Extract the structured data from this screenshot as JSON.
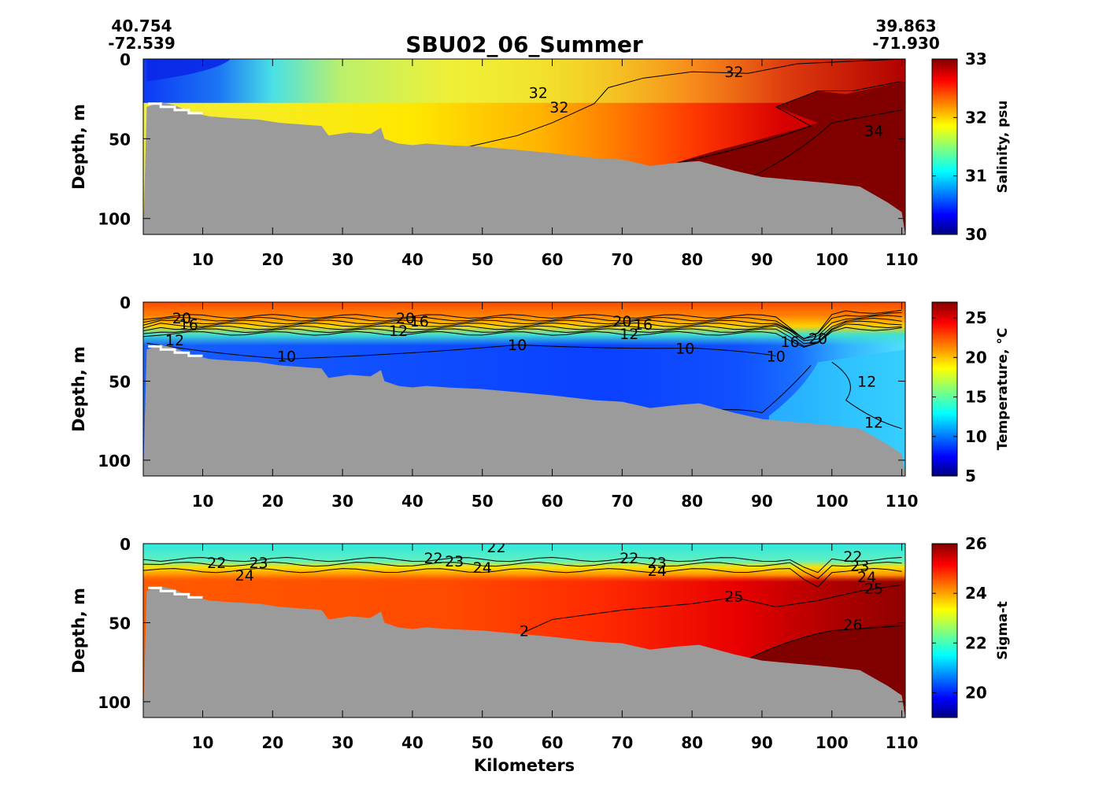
{
  "title": "SBU02_06_Summer",
  "start_coord": {
    "lat": "40.754",
    "lon": "-72.539"
  },
  "end_coord": {
    "lat": "39.863",
    "lon": "-71.930"
  },
  "xlabel": "Kilometers",
  "colors": {
    "bathymetry": "#9b9b9b"
  },
  "chart_data": [
    {
      "type": "heatmap",
      "name": "salinity",
      "ylabel": "Depth, m",
      "colorbar_label": "Salinity, psu",
      "xlim": [
        1.5,
        110.5
      ],
      "ylim": [
        110,
        0
      ],
      "xticks": [
        10,
        20,
        30,
        40,
        50,
        60,
        70,
        80,
        90,
        100,
        110
      ],
      "yticks": [
        0,
        50,
        100
      ],
      "clim": [
        30,
        33
      ],
      "cticks": [
        30,
        31,
        32,
        33
      ],
      "contour_labels": [
        {
          "text": "32",
          "x": 86,
          "y": 8
        },
        {
          "text": "32",
          "x": 58,
          "y": 21
        },
        {
          "text": "32",
          "x": 61,
          "y": 30
        },
        {
          "text": "34",
          "x": 106,
          "y": 45
        }
      ]
    },
    {
      "type": "heatmap",
      "name": "temperature",
      "ylabel": "Depth, m",
      "colorbar_label": "Temperature, °C",
      "xlim": [
        1.5,
        110.5
      ],
      "ylim": [
        110,
        0
      ],
      "xticks": [
        10,
        20,
        30,
        40,
        50,
        60,
        70,
        80,
        90,
        100,
        110
      ],
      "yticks": [
        0,
        50,
        100
      ],
      "clim": [
        5,
        27
      ],
      "cticks": [
        5,
        10,
        15,
        20,
        25
      ],
      "contour_labels": [
        {
          "text": "20",
          "x": 7,
          "y": 10
        },
        {
          "text": "16",
          "x": 8,
          "y": 14
        },
        {
          "text": "12",
          "x": 6,
          "y": 24
        },
        {
          "text": "10",
          "x": 22,
          "y": 34
        },
        {
          "text": "20",
          "x": 39,
          "y": 10
        },
        {
          "text": "16",
          "x": 41,
          "y": 12
        },
        {
          "text": "12",
          "x": 38,
          "y": 18
        },
        {
          "text": "10",
          "x": 55,
          "y": 27
        },
        {
          "text": "20",
          "x": 70,
          "y": 12
        },
        {
          "text": "16",
          "x": 73,
          "y": 14
        },
        {
          "text": "12",
          "x": 71,
          "y": 20
        },
        {
          "text": "10",
          "x": 79,
          "y": 29
        },
        {
          "text": "16",
          "x": 94,
          "y": 25
        },
        {
          "text": "20",
          "x": 98,
          "y": 23
        },
        {
          "text": "10",
          "x": 92,
          "y": 34
        },
        {
          "text": "12",
          "x": 105,
          "y": 50
        },
        {
          "text": "12",
          "x": 106,
          "y": 76
        }
      ]
    },
    {
      "type": "heatmap",
      "name": "sigma-t",
      "ylabel": "Depth, m",
      "colorbar_label": "Sigma-t",
      "xlim": [
        1.5,
        110.5
      ],
      "ylim": [
        110,
        0
      ],
      "xticks": [
        10,
        20,
        30,
        40,
        50,
        60,
        70,
        80,
        90,
        100,
        110
      ],
      "yticks": [
        0,
        50,
        100
      ],
      "clim": [
        19,
        26
      ],
      "cticks": [
        20,
        22,
        24,
        26
      ],
      "contour_labels": [
        {
          "text": "22",
          "x": 52,
          "y": 2
        },
        {
          "text": "22",
          "x": 12,
          "y": 12
        },
        {
          "text": "23",
          "x": 18,
          "y": 12
        },
        {
          "text": "24",
          "x": 16,
          "y": 20
        },
        {
          "text": "22",
          "x": 43,
          "y": 9
        },
        {
          "text": "23",
          "x": 46,
          "y": 11
        },
        {
          "text": "24",
          "x": 50,
          "y": 15
        },
        {
          "text": "22",
          "x": 71,
          "y": 9
        },
        {
          "text": "23",
          "x": 75,
          "y": 12
        },
        {
          "text": "24",
          "x": 75,
          "y": 17
        },
        {
          "text": "25",
          "x": 86,
          "y": 33
        },
        {
          "text": "22",
          "x": 103,
          "y": 8
        },
        {
          "text": "23",
          "x": 104,
          "y": 14
        },
        {
          "text": "24",
          "x": 105,
          "y": 21
        },
        {
          "text": "25",
          "x": 106,
          "y": 28
        },
        {
          "text": "26",
          "x": 103,
          "y": 51
        },
        {
          "text": "2",
          "x": 56,
          "y": 55
        }
      ]
    }
  ],
  "bathymetry": {
    "x": [
      1.5,
      2,
      4,
      6,
      8,
      10,
      11,
      14,
      18,
      21,
      24,
      27,
      28,
      31,
      34,
      35.5,
      36,
      38,
      40,
      42,
      45,
      50,
      55,
      60,
      66,
      70,
      74,
      78,
      81,
      86,
      90,
      95,
      100,
      104,
      108,
      110,
      110.5
    ],
    "y": [
      110,
      30,
      27,
      29,
      33,
      35,
      36,
      37,
      38,
      40,
      41,
      42,
      48,
      46,
      47,
      43,
      50,
      53,
      54,
      53,
      54,
      55,
      57,
      59,
      62,
      63,
      67,
      65,
      64,
      70,
      74,
      76,
      78,
      80,
      90,
      96,
      110
    ]
  }
}
